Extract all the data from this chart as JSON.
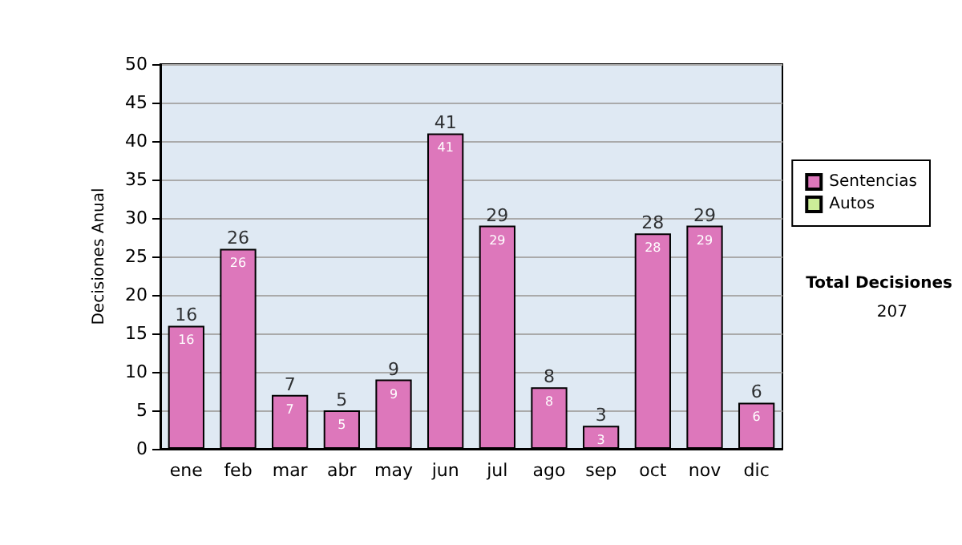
{
  "chart_data": {
    "type": "bar",
    "ylabel": "Decisiones Anual",
    "categories": [
      "ene",
      "feb",
      "mar",
      "abr",
      "may",
      "jun",
      "jul",
      "ago",
      "sep",
      "oct",
      "nov",
      "dic"
    ],
    "series": [
      {
        "name": "Sentencias",
        "color": "#dd77bb",
        "values": [
          16,
          26,
          7,
          5,
          9,
          41,
          29,
          8,
          3,
          28,
          29,
          6
        ],
        "value_labels": [
          "16",
          "26",
          "7",
          "5",
          "9",
          "41",
          "29",
          "8",
          "3",
          "28",
          "29",
          "6"
        ]
      },
      {
        "name": "Autos",
        "color": "#ccee99",
        "values": [
          0,
          0,
          0,
          0,
          0,
          0,
          0,
          0,
          0,
          0,
          0,
          0
        ],
        "value_labels": [
          null,
          null,
          null,
          null,
          null,
          null,
          null,
          null,
          null,
          null,
          null,
          null
        ]
      }
    ],
    "stacked": true,
    "totals": [
      "16",
      "26",
      "7",
      "5",
      "9",
      "41",
      "29",
      "8",
      "3",
      "28",
      "29",
      "6"
    ],
    "ylim": [
      0,
      50
    ],
    "yticks": [
      0,
      5,
      10,
      15,
      20,
      25,
      30,
      35,
      40,
      45,
      50
    ],
    "grid": "y",
    "legend": "right",
    "annotations": [
      "Total Decisiones",
      "207"
    ]
  }
}
